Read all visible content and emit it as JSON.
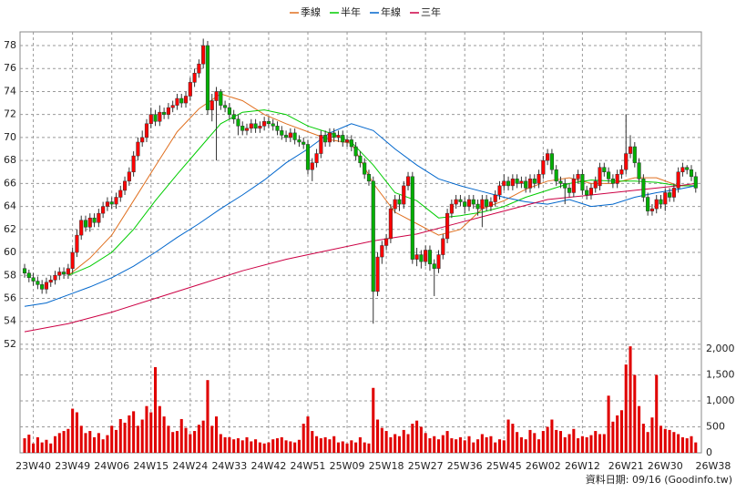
{
  "chart_data": {
    "type": "candlestick",
    "legend_position": "top",
    "grid": true,
    "ylim": [
      51.44,
      79.19
    ],
    "yticks": [
      52,
      54,
      56,
      58,
      60,
      62,
      64,
      66,
      68,
      70,
      72,
      74,
      76,
      78
    ],
    "xlim": [
      -1.05,
      155.3
    ],
    "xticks": [
      {
        "value": 2,
        "label": "23W40"
      },
      {
        "value": 11,
        "label": "23W49"
      },
      {
        "value": 20,
        "label": "24W06"
      },
      {
        "value": 29,
        "label": "24W15"
      },
      {
        "value": 38,
        "label": "24W24"
      },
      {
        "value": 47,
        "label": "24W33"
      },
      {
        "value": 56,
        "label": "24W42"
      },
      {
        "value": 65,
        "label": "24W51"
      },
      {
        "value": 74,
        "label": "25W09"
      },
      {
        "value": 83,
        "label": "25W18"
      },
      {
        "value": 92,
        "label": "25W27"
      },
      {
        "value": 101,
        "label": "25W36"
      },
      {
        "value": 110,
        "label": "25W45"
      },
      {
        "value": 119,
        "label": "26W02"
      },
      {
        "value": 128,
        "label": "26W12"
      },
      {
        "value": 138,
        "label": "26W21"
      },
      {
        "value": 147,
        "label": "26W30"
      },
      {
        "value": 158,
        "label": "26W38"
      }
    ],
    "up_color": "#ff0000",
    "down_color": "#00b000",
    "ohlc": [
      [
        58.6,
        59.0,
        57.8,
        58.2
      ],
      [
        58.2,
        58.5,
        57.4,
        57.8
      ],
      [
        57.8,
        58.2,
        57.1,
        57.5
      ],
      [
        57.5,
        57.9,
        56.8,
        57.2
      ],
      [
        57.2,
        57.6,
        56.4,
        56.8
      ],
      [
        56.8,
        57.8,
        56.4,
        57.4
      ],
      [
        57.4,
        58.0,
        57.0,
        57.6
      ],
      [
        57.6,
        58.4,
        57.2,
        58.0
      ],
      [
        58.0,
        58.7,
        57.6,
        58.3
      ],
      [
        58.3,
        58.7,
        57.7,
        58.1
      ],
      [
        58.1,
        59.0,
        57.7,
        58.6
      ],
      [
        58.6,
        60.4,
        58.2,
        60.0
      ],
      [
        60.0,
        62.0,
        59.6,
        61.5
      ],
      [
        61.5,
        63.2,
        61.1,
        62.8
      ],
      [
        62.8,
        63.2,
        61.8,
        62.2
      ],
      [
        62.2,
        63.4,
        61.8,
        63.0
      ],
      [
        63.0,
        63.4,
        62.2,
        62.6
      ],
      [
        62.6,
        63.8,
        62.2,
        63.4
      ],
      [
        63.4,
        64.4,
        63.0,
        64.0
      ],
      [
        64.0,
        64.8,
        63.6,
        64.4
      ],
      [
        64.4,
        64.8,
        63.8,
        64.2
      ],
      [
        64.2,
        65.2,
        63.8,
        64.8
      ],
      [
        64.8,
        65.8,
        64.4,
        65.4
      ],
      [
        65.4,
        66.6,
        65.0,
        66.2
      ],
      [
        66.2,
        67.4,
        65.8,
        67.0
      ],
      [
        67.0,
        68.8,
        66.6,
        68.4
      ],
      [
        68.4,
        70.0,
        68.0,
        69.6
      ],
      [
        69.6,
        70.6,
        69.2,
        70.0
      ],
      [
        70.0,
        71.6,
        69.6,
        71.2
      ],
      [
        71.2,
        72.6,
        70.8,
        72.0
      ],
      [
        72.0,
        72.4,
        71.0,
        71.4
      ],
      [
        71.4,
        72.8,
        71.0,
        72.2
      ],
      [
        72.2,
        72.6,
        71.6,
        72.0
      ],
      [
        72.0,
        73.0,
        71.6,
        72.6
      ],
      [
        72.6,
        73.2,
        72.2,
        72.8
      ],
      [
        72.8,
        73.8,
        72.4,
        73.4
      ],
      [
        73.4,
        73.8,
        72.6,
        73.0
      ],
      [
        73.0,
        74.0,
        72.6,
        73.6
      ],
      [
        73.6,
        75.2,
        73.2,
        74.8
      ],
      [
        74.8,
        76.0,
        74.4,
        75.6
      ],
      [
        75.6,
        76.8,
        75.2,
        76.4
      ],
      [
        76.4,
        78.6,
        76.0,
        78.0
      ],
      [
        78.0,
        78.4,
        72.0,
        72.4
      ],
      [
        72.4,
        73.8,
        71.4,
        73.2
      ],
      [
        73.2,
        74.4,
        68.0,
        74.0
      ],
      [
        74.0,
        74.2,
        72.4,
        72.8
      ],
      [
        72.8,
        73.2,
        72.2,
        72.6
      ],
      [
        72.6,
        73.0,
        71.6,
        72.0
      ],
      [
        72.0,
        72.4,
        71.2,
        71.6
      ],
      [
        71.6,
        72.0,
        70.2,
        71.0
      ],
      [
        71.0,
        71.4,
        70.2,
        70.6
      ],
      [
        70.6,
        71.2,
        70.2,
        70.8
      ],
      [
        70.8,
        71.6,
        70.4,
        71.2
      ],
      [
        71.2,
        71.6,
        70.4,
        70.8
      ],
      [
        70.8,
        71.4,
        70.4,
        71.0
      ],
      [
        71.0,
        71.8,
        70.6,
        71.4
      ],
      [
        71.4,
        71.8,
        70.8,
        71.2
      ],
      [
        71.2,
        71.6,
        70.6,
        71.0
      ],
      [
        71.0,
        71.4,
        70.2,
        70.6
      ],
      [
        70.6,
        71.0,
        69.8,
        70.2
      ],
      [
        70.2,
        70.6,
        69.6,
        70.0
      ],
      [
        70.0,
        70.8,
        69.6,
        70.4
      ],
      [
        70.4,
        70.8,
        69.4,
        69.8
      ],
      [
        69.8,
        70.2,
        69.2,
        69.6
      ],
      [
        69.6,
        70.0,
        69.0,
        69.4
      ],
      [
        69.4,
        69.8,
        66.8,
        67.2
      ],
      [
        67.2,
        68.2,
        66.2,
        67.8
      ],
      [
        67.8,
        69.0,
        67.4,
        68.6
      ],
      [
        68.6,
        70.6,
        68.2,
        70.2
      ],
      [
        70.2,
        70.6,
        69.2,
        69.6
      ],
      [
        69.6,
        70.8,
        69.2,
        70.4
      ],
      [
        70.4,
        70.8,
        69.6,
        70.0
      ],
      [
        70.0,
        70.6,
        69.6,
        70.2
      ],
      [
        70.2,
        70.6,
        69.2,
        69.6
      ],
      [
        69.6,
        70.2,
        69.2,
        69.8
      ],
      [
        69.8,
        70.2,
        68.8,
        69.2
      ],
      [
        69.2,
        69.6,
        68.0,
        68.4
      ],
      [
        68.4,
        68.8,
        67.4,
        67.8
      ],
      [
        67.8,
        68.2,
        66.4,
        66.8
      ],
      [
        66.8,
        67.2,
        65.8,
        66.2
      ],
      [
        66.2,
        66.6,
        53.8,
        56.6
      ],
      [
        56.6,
        60.0,
        56.2,
        59.6
      ],
      [
        59.6,
        61.0,
        59.0,
        60.6
      ],
      [
        60.6,
        61.6,
        60.2,
        61.2
      ],
      [
        61.2,
        64.2,
        60.8,
        63.8
      ],
      [
        63.8,
        65.0,
        63.4,
        64.6
      ],
      [
        64.6,
        65.0,
        63.6,
        64.2
      ],
      [
        64.2,
        66.2,
        63.8,
        65.8
      ],
      [
        65.8,
        67.0,
        65.4,
        66.6
      ],
      [
        66.6,
        67.0,
        59.0,
        59.4
      ],
      [
        59.4,
        60.4,
        58.8,
        59.8
      ],
      [
        59.8,
        60.2,
        58.6,
        59.2
      ],
      [
        59.2,
        60.6,
        58.8,
        60.2
      ],
      [
        60.2,
        60.6,
        58.4,
        59.0
      ],
      [
        59.0,
        59.4,
        56.2,
        58.6
      ],
      [
        58.6,
        60.2,
        58.2,
        59.8
      ],
      [
        59.8,
        61.6,
        59.4,
        61.2
      ],
      [
        61.2,
        63.8,
        60.8,
        63.4
      ],
      [
        63.4,
        64.6,
        63.0,
        64.2
      ],
      [
        64.2,
        65.0,
        63.8,
        64.6
      ],
      [
        64.6,
        65.0,
        64.0,
        64.4
      ],
      [
        64.4,
        64.8,
        63.4,
        64.0
      ],
      [
        64.0,
        65.0,
        63.6,
        64.6
      ],
      [
        64.6,
        65.0,
        63.8,
        64.2
      ],
      [
        64.2,
        64.6,
        63.2,
        63.8
      ],
      [
        63.8,
        65.0,
        62.2,
        64.6
      ],
      [
        64.6,
        65.0,
        63.6,
        64.0
      ],
      [
        64.0,
        64.8,
        63.6,
        64.4
      ],
      [
        64.4,
        65.4,
        64.0,
        65.0
      ],
      [
        65.0,
        66.2,
        64.6,
        65.8
      ],
      [
        65.8,
        66.8,
        65.4,
        66.2
      ],
      [
        66.2,
        66.6,
        65.4,
        65.8
      ],
      [
        65.8,
        66.8,
        65.4,
        66.4
      ],
      [
        66.4,
        66.8,
        65.6,
        66.0
      ],
      [
        66.0,
        66.6,
        65.6,
        66.2
      ],
      [
        66.2,
        66.6,
        65.2,
        65.6
      ],
      [
        65.6,
        66.8,
        65.2,
        66.4
      ],
      [
        66.4,
        66.8,
        65.6,
        66.0
      ],
      [
        66.0,
        67.2,
        65.6,
        66.8
      ],
      [
        66.8,
        68.4,
        66.4,
        68.0
      ],
      [
        68.0,
        69.0,
        67.6,
        68.6
      ],
      [
        68.6,
        69.0,
        66.8,
        67.2
      ],
      [
        67.2,
        67.6,
        65.8,
        66.2
      ],
      [
        66.2,
        66.6,
        65.6,
        66.0
      ],
      [
        66.0,
        66.4,
        64.2,
        65.6
      ],
      [
        65.6,
        66.0,
        64.8,
        65.2
      ],
      [
        65.2,
        66.8,
        64.8,
        66.4
      ],
      [
        66.4,
        67.2,
        66.0,
        66.8
      ],
      [
        66.8,
        67.2,
        65.0,
        65.4
      ],
      [
        65.4,
        65.8,
        64.6,
        65.0
      ],
      [
        65.0,
        66.0,
        64.6,
        65.6
      ],
      [
        65.6,
        66.6,
        65.2,
        66.2
      ],
      [
        65.8,
        67.8,
        65.4,
        67.4
      ],
      [
        67.4,
        67.8,
        66.6,
        67.0
      ],
      [
        67.0,
        67.4,
        66.0,
        66.4
      ],
      [
        66.4,
        66.8,
        65.6,
        66.0
      ],
      [
        66.0,
        67.2,
        65.6,
        66.8
      ],
      [
        66.8,
        67.6,
        66.4,
        67.2
      ],
      [
        67.2,
        72.0,
        66.8,
        68.6
      ],
      [
        68.6,
        70.2,
        68.2,
        69.2
      ],
      [
        69.2,
        69.6,
        67.4,
        67.8
      ],
      [
        67.8,
        68.2,
        66.0,
        66.4
      ],
      [
        66.4,
        66.8,
        64.4,
        64.8
      ],
      [
        64.8,
        65.2,
        63.2,
        63.6
      ],
      [
        63.6,
        64.2,
        63.2,
        63.8
      ],
      [
        63.8,
        65.0,
        63.4,
        64.6
      ],
      [
        64.6,
        65.0,
        63.8,
        64.2
      ],
      [
        64.2,
        65.6,
        63.6,
        65.2
      ],
      [
        65.2,
        65.6,
        64.4,
        64.8
      ],
      [
        64.8,
        66.0,
        64.4,
        65.6
      ],
      [
        65.6,
        67.4,
        65.2,
        67.0
      ],
      [
        67.0,
        67.8,
        66.6,
        67.4
      ],
      [
        67.4,
        67.6,
        66.8,
        67.2
      ],
      [
        67.2,
        67.6,
        66.2,
        66.6
      ],
      [
        66.6,
        67.0,
        65.2,
        65.6
      ]
    ],
    "volume": {
      "color": "#e00000",
      "ylim": [
        0,
        2140
      ],
      "yticks": [
        0,
        500,
        {
          "value": 1000,
          "label": "1,000"
        },
        {
          "value": 1500,
          "label": "1,500"
        },
        {
          "value": 2000,
          "label": "2,000"
        }
      ],
      "values": [
        280,
        350,
        180,
        300,
        200,
        250,
        180,
        320,
        380,
        420,
        460,
        850,
        780,
        520,
        380,
        420,
        300,
        380,
        260,
        340,
        520,
        440,
        650,
        580,
        720,
        800,
        520,
        640,
        900,
        780,
        1650,
        900,
        700,
        520,
        400,
        420,
        650,
        480,
        360,
        420,
        540,
        620,
        1400,
        520,
        700,
        360,
        300,
        300,
        260,
        280,
        240,
        300,
        220,
        260,
        200,
        180,
        200,
        260,
        280,
        300,
        240,
        220,
        200,
        250,
        560,
        700,
        420,
        320,
        280,
        300,
        260,
        320,
        200,
        220,
        180,
        240,
        200,
        300,
        200,
        180,
        1250,
        640,
        480,
        420,
        300,
        360,
        320,
        440,
        360,
        560,
        620,
        500,
        380,
        280,
        320,
        260,
        340,
        420,
        280,
        260,
        300,
        240,
        320,
        200,
        260,
        360,
        300,
        320,
        200,
        260,
        240,
        640,
        560,
        400,
        300,
        260,
        440,
        380,
        260,
        420,
        500,
        640,
        440,
        420,
        300,
        360,
        460,
        280,
        320,
        300,
        340,
        420,
        360,
        360,
        1100,
        600,
        720,
        820,
        1700,
        2050,
        1500,
        900,
        560,
        400,
        680,
        1500,
        520,
        460,
        440,
        400,
        360,
        300,
        280,
        320,
        200
      ]
    },
    "series": [
      {
        "name": "季線",
        "color": "#e07020",
        "x": [
          10,
          15,
          20,
          25,
          30,
          35,
          40,
          45,
          50,
          55,
          60,
          65,
          70,
          75,
          80,
          85,
          90,
          95,
          100,
          105,
          110,
          115,
          120,
          125,
          130,
          135,
          140,
          145,
          150,
          154
        ],
        "values": [
          58.0,
          59.5,
          61.5,
          64.5,
          67.5,
          70.5,
          72.5,
          73.8,
          73.2,
          72.0,
          71.2,
          70.5,
          69.8,
          69.5,
          66.0,
          63.5,
          62.5,
          61.5,
          62.0,
          63.8,
          64.5,
          65.5,
          66.2,
          66.5,
          66.0,
          66.0,
          66.5,
          66.5,
          65.8,
          65.8
        ]
      },
      {
        "name": "半年",
        "color": "#00cc00",
        "x": [
          10,
          15,
          20,
          25,
          30,
          35,
          40,
          45,
          50,
          55,
          60,
          65,
          70,
          75,
          80,
          85,
          90,
          95,
          100,
          105,
          110,
          115,
          120,
          125,
          130,
          135,
          140,
          145,
          150,
          154
        ],
        "values": [
          58.0,
          58.8,
          60.0,
          62.0,
          64.5,
          66.8,
          69.0,
          71.2,
          72.2,
          72.4,
          72.0,
          71.0,
          70.4,
          69.6,
          67.6,
          65.2,
          64.5,
          63.0,
          63.2,
          63.5,
          64.0,
          64.8,
          65.4,
          66.0,
          66.3,
          66.2,
          66.2,
          66.1,
          65.8,
          65.8
        ]
      },
      {
        "name": "年線",
        "color": "#0066cc",
        "x": [
          0,
          5,
          10,
          15,
          20,
          25,
          30,
          35,
          40,
          45,
          50,
          55,
          60,
          65,
          70,
          75,
          80,
          85,
          90,
          95,
          100,
          105,
          110,
          115,
          120,
          125,
          130,
          135,
          140,
          145,
          150,
          154
        ],
        "values": [
          55.3,
          55.6,
          56.3,
          57.0,
          57.8,
          58.8,
          60.0,
          61.3,
          62.5,
          63.8,
          65.0,
          66.3,
          67.8,
          69.0,
          70.4,
          71.2,
          70.6,
          69.0,
          67.6,
          66.4,
          65.8,
          65.3,
          64.8,
          64.4,
          64.2,
          64.6,
          64.0,
          64.2,
          64.8,
          65.2,
          65.5,
          65.8
        ]
      },
      {
        "name": "三年",
        "color": "#cc0044",
        "x": [
          0,
          10,
          20,
          30,
          40,
          50,
          60,
          70,
          80,
          90,
          100,
          110,
          120,
          130,
          140,
          150,
          154
        ],
        "values": [
          53.1,
          53.8,
          54.8,
          56.0,
          57.2,
          58.4,
          59.4,
          60.2,
          61.0,
          61.6,
          62.6,
          63.6,
          64.6,
          65.0,
          65.4,
          65.8,
          66.0
        ]
      }
    ]
  },
  "footer": "資料日期: 09/16  (Goodinfo.tw)"
}
